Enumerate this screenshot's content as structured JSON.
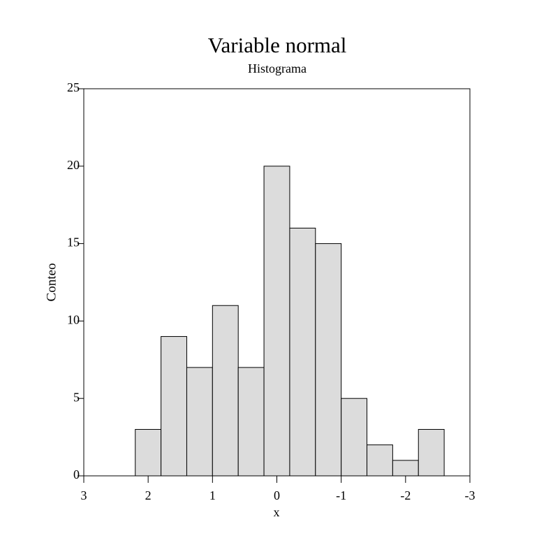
{
  "chart_data": {
    "type": "histogram",
    "title": "Variable normal",
    "subtitle": "Histograma",
    "x_label": "x",
    "y_label": "Conteo",
    "bins": [
      2.2,
      1.8,
      1.4,
      1.0,
      0.6,
      0.2,
      -0.2,
      -0.6,
      -1.0,
      -1.4,
      -1.8,
      -2.2,
      -2.6
    ],
    "values": [
      3,
      9,
      7,
      11,
      7,
      20,
      16,
      15,
      5,
      2,
      1,
      3
    ],
    "color": "#dcdcdc",
    "xlim": [
      3,
      -3
    ],
    "xticks": [
      3,
      2,
      1,
      0,
      -1,
      -2,
      -3
    ],
    "ylim": [
      0,
      25
    ],
    "yticks": [
      0,
      5,
      10,
      15,
      20,
      25
    ]
  }
}
